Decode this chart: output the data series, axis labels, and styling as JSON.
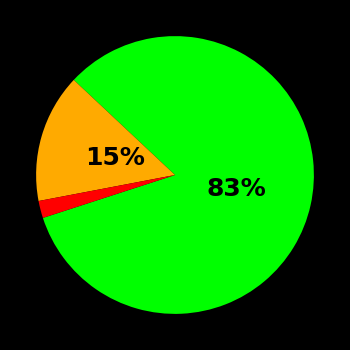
{
  "slices": [
    83,
    15,
    2
  ],
  "colors": [
    "#00ff00",
    "#ffaa00",
    "#ff0000"
  ],
  "labels": [
    "83%",
    "15%",
    ""
  ],
  "label_colors": [
    "#000000",
    "#000000",
    "#000000"
  ],
  "background_color": "#000000",
  "startangle": 198,
  "figsize": [
    3.5,
    3.5
  ],
  "dpi": 100,
  "label_font_size": 18
}
